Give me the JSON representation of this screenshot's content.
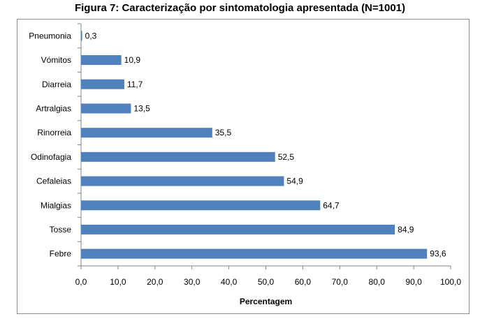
{
  "chart_data": {
    "type": "bar",
    "orientation": "horizontal",
    "title": "Figura 7: Caracterização por sintomatologia apresentada (N=1001)",
    "xlabel": "Percentagem",
    "ylabel": "",
    "categories": [
      "Pneumonia",
      "Vómitos",
      "Diarreia",
      "Artralgias",
      "Rinorreia",
      "Odinofagia",
      "Cefaleias",
      "Mialgias",
      "Tosse",
      "Febre"
    ],
    "values": [
      0.3,
      10.9,
      11.7,
      13.5,
      35.5,
      52.5,
      54.9,
      64.7,
      84.9,
      93.6
    ],
    "value_labels": [
      "0,3",
      "10,9",
      "11,7",
      "13,5",
      "35,5",
      "52,5",
      "54,9",
      "64,7",
      "84,9",
      "93,6"
    ],
    "xlim": [
      0,
      100
    ],
    "xticks": [
      0,
      10,
      20,
      30,
      40,
      50,
      60,
      70,
      80,
      90,
      100
    ],
    "xtick_labels": [
      "0,0",
      "10,0",
      "20,0",
      "30,0",
      "40,0",
      "50,0",
      "60,0",
      "70,0",
      "80,0",
      "90,0",
      "100,0"
    ],
    "bar_color": "#4f81bd",
    "grid": false,
    "legend": "none"
  }
}
